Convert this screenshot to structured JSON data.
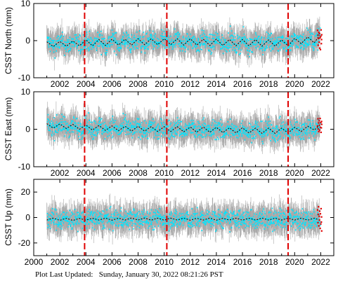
{
  "footer": {
    "label": "Plot Last Updated:",
    "timestamp": "Sunday, January 30, 2022 08:21:26 PST"
  },
  "colors": {
    "errorbar": "#a9a9a9",
    "daily_points": "#00e5ff",
    "recent_points": "#e00000",
    "model_line": "#000000",
    "event_lines": "#e00000"
  },
  "chart_data": [
    {
      "type": "scatter",
      "ylabel": "CSST North (mm)",
      "xlim": [
        2000,
        2023
      ],
      "ylim": [
        -10,
        10
      ],
      "yticks": [
        -10,
        0,
        10
      ],
      "xticks": [
        2002,
        2004,
        2006,
        2008,
        2010,
        2012,
        2014,
        2016,
        2018,
        2020,
        2022
      ],
      "event_lines": [
        2003.9,
        2010.2,
        2019.5
      ],
      "series": [
        {
          "kind": "model",
          "x": [
            2001.0,
            2001.5,
            2002.0,
            2002.5,
            2003.0,
            2003.5,
            2004.0,
            2004.5,
            2005.0,
            2005.5,
            2006.0,
            2006.5,
            2007.0,
            2007.5,
            2008.0,
            2008.5,
            2009.0,
            2009.5,
            2010.0,
            2010.5,
            2011.0,
            2011.5,
            2012.0,
            2012.5,
            2013.0,
            2013.5,
            2014.0,
            2014.5,
            2015.0,
            2015.5,
            2016.0,
            2016.5,
            2017.0,
            2017.5,
            2018.0,
            2018.5,
            2019.0,
            2019.5,
            2020.0,
            2020.5,
            2021.0,
            2021.5,
            2021.9
          ],
          "y": [
            -0.3,
            -1.6,
            -0.2,
            -1.5,
            -0.1,
            -1.4,
            0.2,
            -1.4,
            0.3,
            -1.3,
            0.4,
            -1.2,
            0.4,
            -1.2,
            0.5,
            -1.1,
            0.5,
            -1.1,
            0.5,
            -1.1,
            0.5,
            -1.2,
            0.5,
            -1.2,
            0.4,
            -1.3,
            0.4,
            -1.3,
            0.3,
            -1.4,
            0.3,
            -1.4,
            0.3,
            -1.5,
            0.2,
            -1.5,
            0.2,
            -1.4,
            0.6,
            -0.8,
            1.0,
            -0.6,
            1.4
          ]
        },
        {
          "kind": "recent",
          "x": [
            2021.75,
            2021.78,
            2021.8,
            2021.83,
            2021.85,
            2021.88,
            2021.9,
            2021.92,
            2021.95,
            2021.97,
            2022.0,
            2022.02,
            2022.04,
            2022.06,
            2022.07
          ],
          "y": [
            2.8,
            1.5,
            -1.2,
            0.6,
            2.2,
            -0.4,
            1.9,
            -2.0,
            0.8,
            -2.4,
            1.2,
            2.9,
            -0.8,
            0.3,
            1.6
          ]
        }
      ]
    },
    {
      "type": "scatter",
      "ylabel": "CSST East (mm)",
      "xlim": [
        2000,
        2023
      ],
      "ylim": [
        -10,
        10
      ],
      "yticks": [
        -10,
        0,
        10
      ],
      "xticks": [
        2002,
        2004,
        2006,
        2008,
        2010,
        2012,
        2014,
        2016,
        2018,
        2020,
        2022
      ],
      "event_lines": [
        2003.9,
        2010.2,
        2019.5
      ],
      "series": [
        {
          "kind": "model",
          "x": [
            2001.0,
            2001.5,
            2002.0,
            2002.5,
            2003.0,
            2003.5,
            2004.0,
            2004.5,
            2005.0,
            2005.5,
            2006.0,
            2006.5,
            2007.0,
            2007.5,
            2008.0,
            2008.5,
            2009.0,
            2009.5,
            2010.0,
            2010.5,
            2011.0,
            2011.5,
            2012.0,
            2012.5,
            2013.0,
            2013.5,
            2014.0,
            2014.5,
            2015.0,
            2015.5,
            2016.0,
            2016.5,
            2017.0,
            2017.5,
            2018.0,
            2018.5,
            2019.0,
            2019.5,
            2020.0,
            2020.5,
            2021.0,
            2021.5,
            2021.9
          ],
          "y": [
            1.5,
            0.3,
            1.4,
            0.2,
            1.3,
            0.0,
            1.1,
            -0.2,
            1.0,
            -0.3,
            0.9,
            -0.4,
            0.8,
            -0.5,
            0.8,
            -0.5,
            0.7,
            -0.6,
            0.7,
            -0.6,
            0.7,
            -0.7,
            0.6,
            -0.8,
            0.6,
            -0.8,
            0.5,
            -0.9,
            0.4,
            -1.0,
            0.4,
            -1.0,
            0.3,
            -1.1,
            0.3,
            -1.1,
            0.3,
            -1.0,
            0.5,
            -0.6,
            0.8,
            -0.2,
            1.0
          ]
        },
        {
          "kind": "recent",
          "x": [
            2021.75,
            2021.78,
            2021.8,
            2021.83,
            2021.85,
            2021.88,
            2021.9,
            2021.92,
            2021.95,
            2021.97,
            2022.0,
            2022.02,
            2022.04,
            2022.06,
            2022.07
          ],
          "y": [
            0.9,
            2.8,
            0.1,
            1.7,
            -0.6,
            2.3,
            1.1,
            -0.2,
            2.9,
            0.5,
            1.8,
            -0.8,
            0.4,
            2.1,
            1.3
          ]
        }
      ]
    },
    {
      "type": "scatter",
      "ylabel": "CSST Up (mm)",
      "xlim": [
        2000,
        2023
      ],
      "ylim": [
        -30,
        30
      ],
      "yticks": [
        -20,
        0,
        20
      ],
      "xticks": [
        2000,
        2002,
        2004,
        2006,
        2008,
        2010,
        2012,
        2014,
        2016,
        2018,
        2020,
        2022
      ],
      "event_lines": [
        2003.9,
        2010.2,
        2019.5
      ],
      "series": [
        {
          "kind": "model",
          "x": [
            2001.0,
            2001.5,
            2002.0,
            2002.5,
            2003.0,
            2003.5,
            2004.0,
            2004.5,
            2005.0,
            2005.5,
            2006.0,
            2006.5,
            2007.0,
            2007.5,
            2008.0,
            2008.5,
            2009.0,
            2009.5,
            2010.0,
            2010.5,
            2011.0,
            2011.5,
            2012.0,
            2012.5,
            2013.0,
            2013.5,
            2014.0,
            2014.5,
            2015.0,
            2015.5,
            2016.0,
            2016.5,
            2017.0,
            2017.5,
            2018.0,
            2018.5,
            2019.0,
            2019.5,
            2020.0,
            2020.5,
            2021.0,
            2021.5,
            2021.9
          ],
          "y": [
            -2.0,
            -0.5,
            -2.2,
            -0.6,
            -2.3,
            -0.7,
            -2.1,
            -0.6,
            -2.0,
            -0.5,
            -2.1,
            -0.5,
            -2.0,
            -0.4,
            -2.0,
            -0.4,
            -2.1,
            -0.5,
            -2.1,
            -0.5,
            -2.0,
            -0.5,
            -2.1,
            -0.6,
            -2.0,
            -0.5,
            -2.1,
            -0.6,
            -2.0,
            -0.5,
            -2.1,
            -0.6,
            -2.0,
            -0.5,
            -2.0,
            -0.5,
            -2.0,
            -0.5,
            -2.0,
            -0.5,
            -2.1,
            -0.5,
            -2.0
          ]
        },
        {
          "kind": "recent",
          "x": [
            2021.75,
            2021.78,
            2021.8,
            2021.83,
            2021.85,
            2021.88,
            2021.9,
            2021.92,
            2021.95,
            2021.97,
            2022.0,
            2022.02,
            2022.04,
            2022.06,
            2022.07
          ],
          "y": [
            6.0,
            -4.0,
            2.5,
            8.5,
            -6.5,
            1.0,
            -2.0,
            5.0,
            -8.5,
            3.0,
            -5.0,
            7.0,
            -3.5,
            0.5,
            -10.5
          ]
        }
      ]
    }
  ]
}
